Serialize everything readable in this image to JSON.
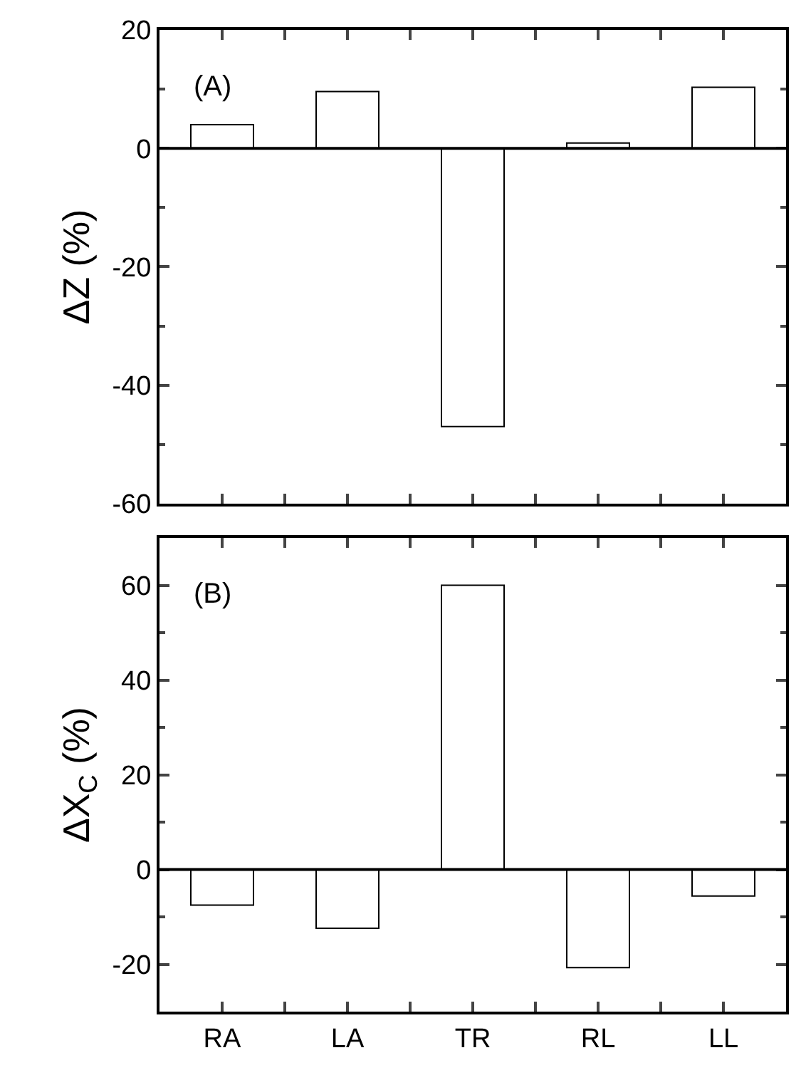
{
  "chart_data": [
    {
      "type": "bar",
      "categories": [
        null,
        null,
        null,
        null,
        null
      ],
      "values": [
        4.0,
        9.6,
        -47,
        0.9,
        10.3
      ],
      "color": "#ffffff",
      "ylim": [
        -60,
        20
      ],
      "yticks": [
        -60,
        -40,
        -20,
        0,
        20
      ],
      "ylabel": "ΔZ (%)",
      "annotations": [
        "(A)"
      ],
      "ref_lines": [
        {
          "axis": "y",
          "value": 0
        }
      ],
      "tick_labels": "y"
    },
    {
      "type": "bar",
      "categories": [
        "RA",
        "LA",
        "TR",
        "RL",
        "LL"
      ],
      "values": [
        -7.5,
        -12.4,
        60,
        -20.7,
        -5.6
      ],
      "color": "#ffffff",
      "ylim": [
        -30,
        70
      ],
      "yticks": [
        -20,
        0,
        20,
        40,
        60
      ],
      "ylabel": "ΔX$_{C}$ (%)",
      "annotations": [
        "(B)"
      ],
      "ref_lines": [
        {
          "axis": "y",
          "value": 0
        }
      ]
    }
  ]
}
